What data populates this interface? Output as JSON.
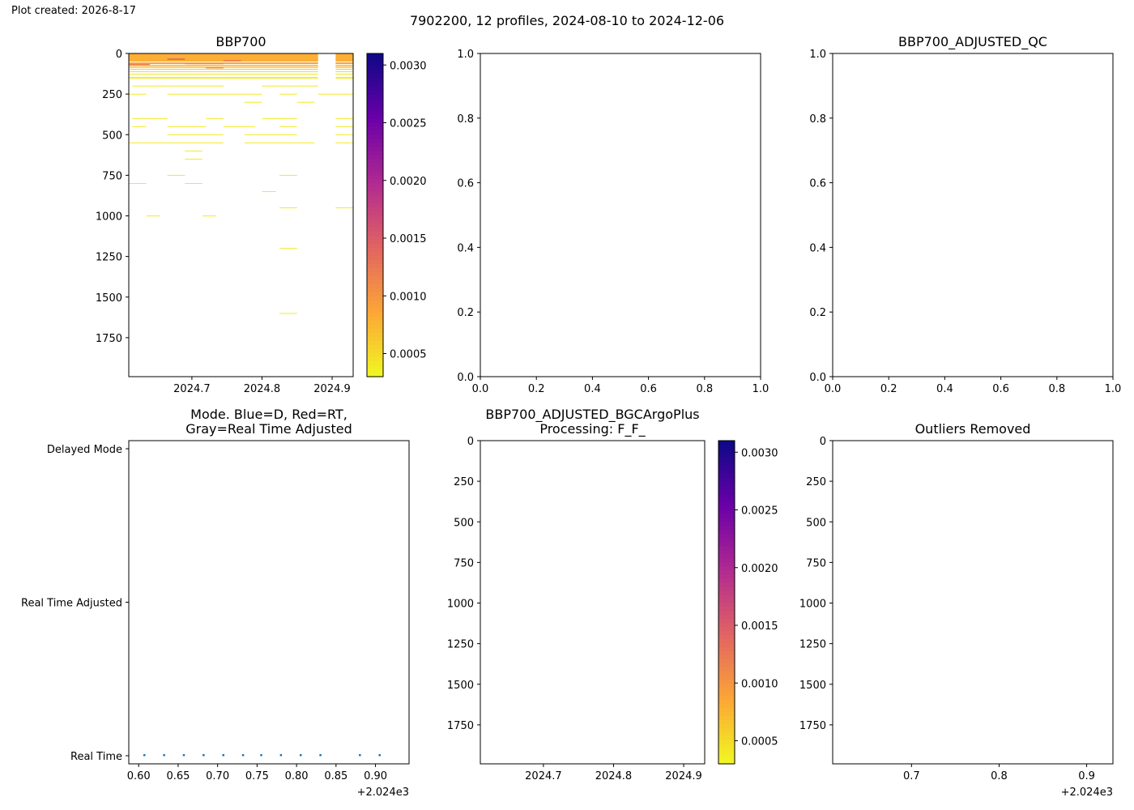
{
  "header": {
    "created_label": "Plot created: 2026-8-17",
    "suptitle": "7902200, 12 profiles, 2024-08-10 to 2024-12-06"
  },
  "colormap": {
    "name": "plasma_r",
    "stops": [
      "#f0f921",
      "#fca636",
      "#e16462",
      "#b12a90",
      "#6a00a8",
      "#0d0887"
    ]
  },
  "chart_data": [
    {
      "id": "bbp700",
      "type": "heatmap",
      "title": "BBP700",
      "xlim": [
        2024.61,
        2024.93
      ],
      "ylim": [
        1990,
        0
      ],
      "xticks": [
        2024.7,
        2024.8,
        2024.9
      ],
      "xtick_labels": [
        "2024.7",
        "2024.8",
        "2024.9"
      ],
      "yticks": [
        0,
        250,
        500,
        750,
        1000,
        1250,
        1500,
        1750
      ],
      "ytick_labels": [
        "0",
        "250",
        "500",
        "750",
        "1000",
        "1250",
        "1500",
        "1750"
      ],
      "colorbar": {
        "range": [
          0.0003,
          0.0031
        ],
        "ticks": [
          0.0005,
          0.001,
          0.0015,
          0.002,
          0.0025,
          0.003
        ],
        "tick_labels": [
          "0.0005",
          "0.0010",
          "0.0015",
          "0.0020",
          "0.0025",
          "0.0030"
        ]
      },
      "segments": [
        {
          "x0": 2024.61,
          "x1": 2024.93,
          "depth0": 0,
          "depth1": 50,
          "value": 0.0008
        },
        {
          "x0": 2024.61,
          "x1": 2024.93,
          "depth0": 55,
          "depth1": 65,
          "value": 0.0009
        },
        {
          "x0": 2024.61,
          "x1": 2024.93,
          "depth0": 70,
          "depth1": 78,
          "value": 0.0007
        },
        {
          "x0": 2024.61,
          "x1": 2024.93,
          "depth0": 82,
          "depth1": 88,
          "value": 0.0008
        },
        {
          "x0": 2024.61,
          "x1": 2024.93,
          "depth0": 95,
          "depth1": 100,
          "value": 0.0006
        },
        {
          "x0": 2024.61,
          "x1": 2024.93,
          "depth0": 110,
          "depth1": 114,
          "value": 0.0005
        },
        {
          "x0": 2024.61,
          "x1": 2024.93,
          "depth0": 125,
          "depth1": 128,
          "value": 0.0004
        },
        {
          "x0": 2024.61,
          "x1": 2024.93,
          "depth0": 145,
          "depth1": 148,
          "value": 0.0004
        },
        {
          "x0": 2024.61,
          "x1": 2024.93,
          "depth0": 150,
          "depth1": 153,
          "value": 0.0004
        },
        {
          "x0": 2024.665,
          "x1": 2024.69,
          "depth0": 30,
          "depth1": 40,
          "value": 0.0013
        },
        {
          "x0": 2024.745,
          "x1": 2024.77,
          "depth0": 40,
          "depth1": 48,
          "value": 0.0012
        },
        {
          "x0": 2024.69,
          "x1": 2024.745,
          "depth0": 60,
          "depth1": 66,
          "value": 0.0011
        },
        {
          "x0": 2024.61,
          "x1": 2024.64,
          "depth0": 65,
          "depth1": 72,
          "value": 0.0012
        },
        {
          "x0": 2024.72,
          "x1": 2024.745,
          "depth0": 85,
          "depth1": 92,
          "value": 0.0011
        },
        {
          "x0": 2024.615,
          "x1": 2024.745,
          "depth0": 198,
          "depth1": 201,
          "value": 0.0004
        },
        {
          "x0": 2024.8,
          "x1": 2024.88,
          "depth0": 198,
          "depth1": 201,
          "value": 0.0004
        },
        {
          "x0": 2024.61,
          "x1": 2024.635,
          "depth0": 248,
          "depth1": 251,
          "value": 0.0004
        },
        {
          "x0": 2024.665,
          "x1": 2024.8,
          "depth0": 248,
          "depth1": 251,
          "value": 0.0004
        },
        {
          "x0": 2024.825,
          "x1": 2024.85,
          "depth0": 248,
          "depth1": 251,
          "value": 0.0004
        },
        {
          "x0": 2024.88,
          "x1": 2024.93,
          "depth0": 248,
          "depth1": 251,
          "value": 0.0004
        },
        {
          "x0": 2024.775,
          "x1": 2024.8,
          "depth0": 298,
          "depth1": 301,
          "value": 0.0004
        },
        {
          "x0": 2024.85,
          "x1": 2024.875,
          "depth0": 298,
          "depth1": 301,
          "value": 0.0004
        },
        {
          "x0": 2024.615,
          "x1": 2024.665,
          "depth0": 398,
          "depth1": 401,
          "value": 0.0004
        },
        {
          "x0": 2024.72,
          "x1": 2024.745,
          "depth0": 398,
          "depth1": 401,
          "value": 0.0004
        },
        {
          "x0": 2024.8,
          "x1": 2024.85,
          "depth0": 398,
          "depth1": 401,
          "value": 0.0004
        },
        {
          "x0": 2024.905,
          "x1": 2024.93,
          "depth0": 398,
          "depth1": 401,
          "value": 0.0004
        },
        {
          "x0": 2024.615,
          "x1": 2024.635,
          "depth0": 448,
          "depth1": 451,
          "value": 0.0004
        },
        {
          "x0": 2024.665,
          "x1": 2024.72,
          "depth0": 448,
          "depth1": 451,
          "value": 0.0004
        },
        {
          "x0": 2024.745,
          "x1": 2024.79,
          "depth0": 448,
          "depth1": 451,
          "value": 0.0004
        },
        {
          "x0": 2024.825,
          "x1": 2024.85,
          "depth0": 448,
          "depth1": 451,
          "value": 0.0004
        },
        {
          "x0": 2024.905,
          "x1": 2024.93,
          "depth0": 448,
          "depth1": 451,
          "value": 0.0004
        },
        {
          "x0": 2024.665,
          "x1": 2024.745,
          "depth0": 498,
          "depth1": 501,
          "value": 0.0004
        },
        {
          "x0": 2024.775,
          "x1": 2024.85,
          "depth0": 498,
          "depth1": 501,
          "value": 0.0004
        },
        {
          "x0": 2024.905,
          "x1": 2024.93,
          "depth0": 498,
          "depth1": 501,
          "value": 0.0004
        },
        {
          "x0": 2024.61,
          "x1": 2024.745,
          "depth0": 548,
          "depth1": 551,
          "value": 0.0004
        },
        {
          "x0": 2024.775,
          "x1": 2024.875,
          "depth0": 548,
          "depth1": 551,
          "value": 0.0004
        },
        {
          "x0": 2024.905,
          "x1": 2024.93,
          "depth0": 548,
          "depth1": 551,
          "value": 0.0004
        },
        {
          "x0": 2024.69,
          "x1": 2024.715,
          "depth0": 598,
          "depth1": 601,
          "value": 0.0004
        },
        {
          "x0": 2024.69,
          "x1": 2024.715,
          "depth0": 648,
          "depth1": 651,
          "value": 0.0004
        },
        {
          "x0": 2024.665,
          "x1": 2024.69,
          "depth0": 748,
          "depth1": 751,
          "value": 0.0004
        },
        {
          "x0": 2024.825,
          "x1": 2024.85,
          "depth0": 748,
          "depth1": 751,
          "value": 0.0004
        },
        {
          "x0": 2024.61,
          "x1": 2024.635,
          "depth0": 798,
          "depth1": 801,
          "value": 0.0004
        },
        {
          "x0": 2024.69,
          "x1": 2024.715,
          "depth0": 798,
          "depth1": 801,
          "value": 0.0004
        },
        {
          "x0": 2024.8,
          "x1": 2024.82,
          "depth0": 848,
          "depth1": 851,
          "value": 0.0004
        },
        {
          "x0": 2024.825,
          "x1": 2024.85,
          "depth0": 948,
          "depth1": 951,
          "value": 0.0004
        },
        {
          "x0": 2024.905,
          "x1": 2024.93,
          "depth0": 948,
          "depth1": 951,
          "value": 0.0004
        },
        {
          "x0": 2024.635,
          "x1": 2024.655,
          "depth0": 998,
          "depth1": 1001,
          "value": 0.0004
        },
        {
          "x0": 2024.715,
          "x1": 2024.735,
          "depth0": 998,
          "depth1": 1001,
          "value": 0.0004
        },
        {
          "x0": 2024.825,
          "x1": 2024.85,
          "depth0": 1198,
          "depth1": 1201,
          "value": 0.0004
        },
        {
          "x0": 2024.825,
          "x1": 2024.85,
          "depth0": 1598,
          "depth1": 1601,
          "value": 0.0004
        }
      ],
      "gaps": [
        {
          "x0": 2024.88,
          "x1": 2024.905,
          "depth0": 0,
          "depth1": 160
        }
      ]
    },
    {
      "id": "empty-1",
      "type": "scatter",
      "title": "",
      "xlim": [
        0,
        1
      ],
      "ylim": [
        0,
        1
      ],
      "xticks": [
        0,
        0.2,
        0.4,
        0.6,
        0.8,
        1.0
      ],
      "xtick_labels": [
        "0.0",
        "0.2",
        "0.4",
        "0.6",
        "0.8",
        "1.0"
      ],
      "yticks": [
        0,
        0.2,
        0.4,
        0.6,
        0.8,
        1.0
      ],
      "ytick_labels": [
        "0.0",
        "0.2",
        "0.4",
        "0.6",
        "0.8",
        "1.0"
      ]
    },
    {
      "id": "bbp700-adjusted-qc",
      "type": "scatter",
      "title": "BBP700_ADJUSTED_QC",
      "xlim": [
        0,
        1
      ],
      "ylim": [
        0,
        1
      ],
      "xticks": [
        0,
        0.2,
        0.4,
        0.6,
        0.8,
        1.0
      ],
      "xtick_labels": [
        "0.0",
        "0.2",
        "0.4",
        "0.6",
        "0.8",
        "1.0"
      ],
      "yticks": [
        0,
        0.2,
        0.4,
        0.6,
        0.8,
        1.0
      ],
      "ytick_labels": [
        "0.0",
        "0.2",
        "0.4",
        "0.6",
        "0.8",
        "1.0"
      ]
    },
    {
      "id": "mode",
      "type": "scatter",
      "title_lines": [
        "Mode. Blue=D, Red=RT,",
        "Gray=Real Time Adjusted"
      ],
      "xlim": [
        0.5875,
        0.9425
      ],
      "ylim": [
        0,
        2
      ],
      "xticks": [
        0.6,
        0.65,
        0.7,
        0.75,
        0.8,
        0.85,
        0.9
      ],
      "xtick_labels": [
        "0.60",
        "0.65",
        "0.70",
        "0.75",
        "0.80",
        "0.85",
        "0.90"
      ],
      "x_offset_label": "+2.024e3",
      "yticks": [
        0,
        1,
        2
      ],
      "ytick_labels": [
        "Real Time",
        "Real Time Adjusted",
        "Delayed Mode"
      ],
      "points": [
        {
          "x": 0.607,
          "y": 0
        },
        {
          "x": 0.632,
          "y": 0
        },
        {
          "x": 0.657,
          "y": 0
        },
        {
          "x": 0.682,
          "y": 0
        },
        {
          "x": 0.707,
          "y": 0
        },
        {
          "x": 0.732,
          "y": 0
        },
        {
          "x": 0.755,
          "y": 0
        },
        {
          "x": 0.78,
          "y": 0
        },
        {
          "x": 0.805,
          "y": 0
        },
        {
          "x": 0.83,
          "y": 0
        },
        {
          "x": 0.88,
          "y": 0
        },
        {
          "x": 0.905,
          "y": 0
        }
      ],
      "point_color": "#1f77b4"
    },
    {
      "id": "bbp700-adjusted-bgcargoplus",
      "type": "heatmap",
      "title_lines": [
        "BBP700_ADJUSTED_BGCArgoPlus",
        "Processing: F_F_"
      ],
      "xlim": [
        2024.61,
        2024.93
      ],
      "ylim": [
        1990,
        0
      ],
      "xticks": [
        2024.7,
        2024.8,
        2024.9
      ],
      "xtick_labels": [
        "2024.7",
        "2024.8",
        "2024.9"
      ],
      "yticks": [
        0,
        250,
        500,
        750,
        1000,
        1250,
        1500,
        1750
      ],
      "ytick_labels": [
        "0",
        "250",
        "500",
        "750",
        "1000",
        "1250",
        "1500",
        "1750"
      ],
      "colorbar": {
        "range": [
          0.0003,
          0.0031
        ],
        "ticks": [
          0.0005,
          0.001,
          0.0015,
          0.002,
          0.0025,
          0.003
        ],
        "tick_labels": [
          "0.0005",
          "0.0010",
          "0.0015",
          "0.0020",
          "0.0025",
          "0.0030"
        ]
      },
      "segments": []
    },
    {
      "id": "outliers-removed",
      "type": "scatter",
      "title": "Outliers Removed",
      "xlim": [
        0.61,
        0.93
      ],
      "ylim": [
        1990,
        0
      ],
      "xticks": [
        0.7,
        0.8,
        0.9
      ],
      "xtick_labels": [
        "0.7",
        "0.8",
        "0.9"
      ],
      "x_offset_label": "+2.024e3",
      "yticks": [
        0,
        250,
        500,
        750,
        1000,
        1250,
        1500,
        1750
      ],
      "ytick_labels": [
        "0",
        "250",
        "500",
        "750",
        "1000",
        "1250",
        "1500",
        "1750"
      ],
      "points": []
    }
  ]
}
